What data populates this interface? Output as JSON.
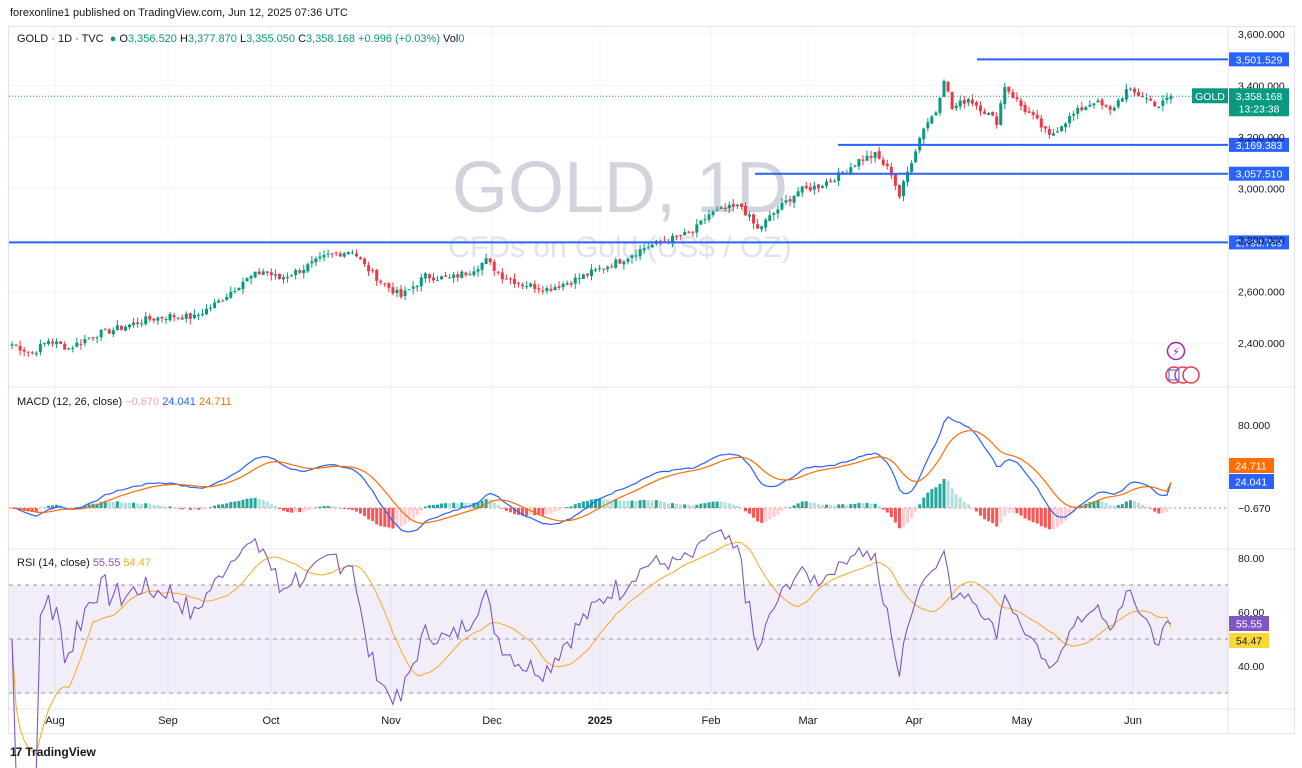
{
  "header": {
    "caption": "forexonline1 published on TradingView.com, Jun 12, 2025 07:36 UTC"
  },
  "price_pane": {
    "symbol": "GOLD · 1D · TVC",
    "open_label": "O",
    "open": "3,356.520",
    "high_label": "H",
    "high": "3,377.870",
    "low_label": "L",
    "low": "3,355.050",
    "close_label": "C",
    "close": "3,358.168",
    "change": "+0.996 (+0.03%)",
    "vol_label": "Vol",
    "watermark_title": "GOLD, 1D",
    "watermark_subtitle": "CFDs on Gold (US$ / OZ)",
    "current_badge_symbol": "GOLD",
    "current_badge_price": "3,358.168",
    "countdown": "13:23:38",
    "colors": {
      "up": "#089981",
      "down": "#f23645",
      "hline": "#2962ff",
      "accent": "#089981"
    }
  },
  "macd_pane": {
    "label": "MACD (12, 26, close)",
    "hist_value": "−0.670",
    "macd_value": "24.041",
    "signal_value": "24.711"
  },
  "rsi_pane": {
    "label": "RSI (14, close)",
    "rsi_value": "55.55",
    "ma_value": "54.47"
  },
  "footer": {
    "brand": "TradingView",
    "logo_glyph": "17"
  },
  "chart_data": [
    {
      "type": "line",
      "title": "GOLD, 1D",
      "series_kind": "candlestick",
      "price_axis_ticks": [
        2400,
        2600,
        2800,
        3000,
        3200,
        3400,
        3600
      ],
      "price_axis_labels": [
        "2,400.000",
        "2,600.000",
        "2,800.000",
        "3,000.000",
        "3,200.000",
        "3,400.000",
        "3,600.000"
      ],
      "ylim": [
        2300,
        3640
      ],
      "horizontal_levels": [
        {
          "value": 3501.529,
          "label": "3,501.529"
        },
        {
          "value": 3169.383,
          "label": "3,169.383"
        },
        {
          "value": 3057.51,
          "label": "3,057.510"
        },
        {
          "value": 2790.769,
          "label": "2,790.769"
        }
      ],
      "last_price": 3358.168,
      "x_axis_labels": [
        "Aug",
        "Sep",
        "Oct",
        "Nov",
        "Dec",
        "2025",
        "Feb",
        "Mar",
        "Apr",
        "May",
        "Jun"
      ],
      "close_path_points": [
        [
          0,
          2395
        ],
        [
          5,
          2360
        ],
        [
          9,
          2410
        ],
        [
          14,
          2380
        ],
        [
          20,
          2430
        ],
        [
          27,
          2460
        ],
        [
          33,
          2490
        ],
        [
          39,
          2505
        ],
        [
          45,
          2500
        ],
        [
          51,
          2560
        ],
        [
          57,
          2640
        ],
        [
          62,
          2680
        ],
        [
          66,
          2650
        ],
        [
          72,
          2690
        ],
        [
          78,
          2740
        ],
        [
          84,
          2760
        ],
        [
          87,
          2700
        ],
        [
          91,
          2640
        ],
        [
          96,
          2580
        ],
        [
          102,
          2660
        ],
        [
          108,
          2650
        ],
        [
          113,
          2680
        ],
        [
          117,
          2720
        ],
        [
          121,
          2660
        ],
        [
          126,
          2630
        ],
        [
          132,
          2610
        ],
        [
          138,
          2640
        ],
        [
          144,
          2680
        ],
        [
          150,
          2720
        ],
        [
          156,
          2770
        ],
        [
          162,
          2800
        ],
        [
          168,
          2830
        ],
        [
          172,
          2900
        ],
        [
          176,
          2920
        ],
        [
          180,
          2930
        ],
        [
          184,
          2840
        ],
        [
          189,
          2920
        ],
        [
          194,
          2990
        ],
        [
          199,
          3010
        ],
        [
          204,
          3050
        ],
        [
          209,
          3110
        ],
        [
          213,
          3130
        ],
        [
          217,
          3060
        ],
        [
          219,
          2970
        ],
        [
          222,
          3110
        ],
        [
          225,
          3240
        ],
        [
          228,
          3300
        ],
        [
          230,
          3430
        ],
        [
          232,
          3310
        ],
        [
          236,
          3350
        ],
        [
          240,
          3300
        ],
        [
          243,
          3260
        ],
        [
          245,
          3400
        ],
        [
          249,
          3320
        ],
        [
          253,
          3260
        ],
        [
          256,
          3200
        ],
        [
          259,
          3250
        ],
        [
          263,
          3300
        ],
        [
          267,
          3340
        ],
        [
          271,
          3300
        ],
        [
          275,
          3380
        ],
        [
          279,
          3360
        ],
        [
          283,
          3320
        ],
        [
          286,
          3358
        ]
      ]
    },
    {
      "type": "line",
      "title": "MACD (12, 26, close)",
      "series": [
        {
          "name": "MACD",
          "last_value": 24.041
        },
        {
          "name": "Signal",
          "last_value": 24.711
        },
        {
          "name": "Histogram",
          "last_value": -0.67
        }
      ],
      "axis_ticks": [
        80.0
      ],
      "axis_labels": [
        "80.000"
      ]
    },
    {
      "type": "line",
      "title": "RSI (14, close)",
      "series": [
        {
          "name": "RSI",
          "last_value": 55.55
        },
        {
          "name": "RSI-based MA",
          "last_value": 54.47
        }
      ],
      "axis_ticks": [
        80,
        60,
        40
      ],
      "axis_labels": [
        "80.00",
        "60.00",
        "40.00"
      ],
      "bands": [
        70,
        50,
        30
      ]
    }
  ]
}
